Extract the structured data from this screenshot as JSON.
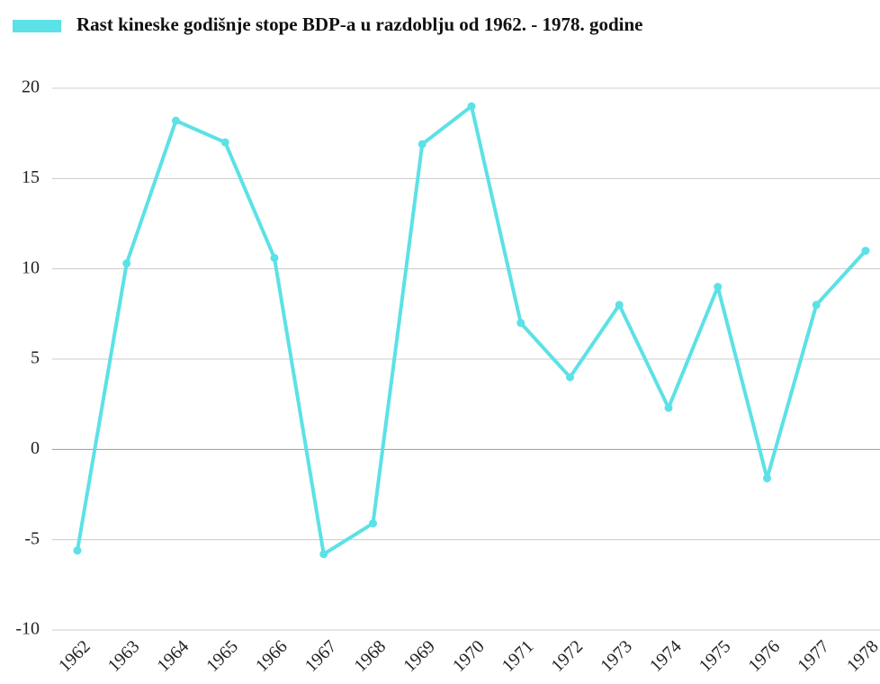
{
  "chart_data": {
    "type": "line",
    "categories": [
      "1962",
      "1963",
      "1964",
      "1965",
      "1966",
      "1967",
      "1968",
      "1969",
      "1970",
      "1971",
      "1972",
      "1973",
      "1974",
      "1975",
      "1976",
      "1977",
      "1978"
    ],
    "series": [
      {
        "name": "Rast kineske godišnje stope BDP-a  u razdoblju od 1962. - 1978. godine",
        "color": "#5ce1e6",
        "values": [
          -5.6,
          10.3,
          18.2,
          17.0,
          10.6,
          -5.8,
          -4.1,
          16.9,
          19.0,
          7.0,
          4.0,
          8.0,
          2.3,
          9.0,
          -1.6,
          8.0,
          11.0
        ]
      }
    ],
    "ylim": [
      -10,
      20
    ],
    "yticks": [
      -10,
      -5,
      0,
      5,
      10,
      15,
      20
    ],
    "grid": true,
    "legend": "top"
  }
}
